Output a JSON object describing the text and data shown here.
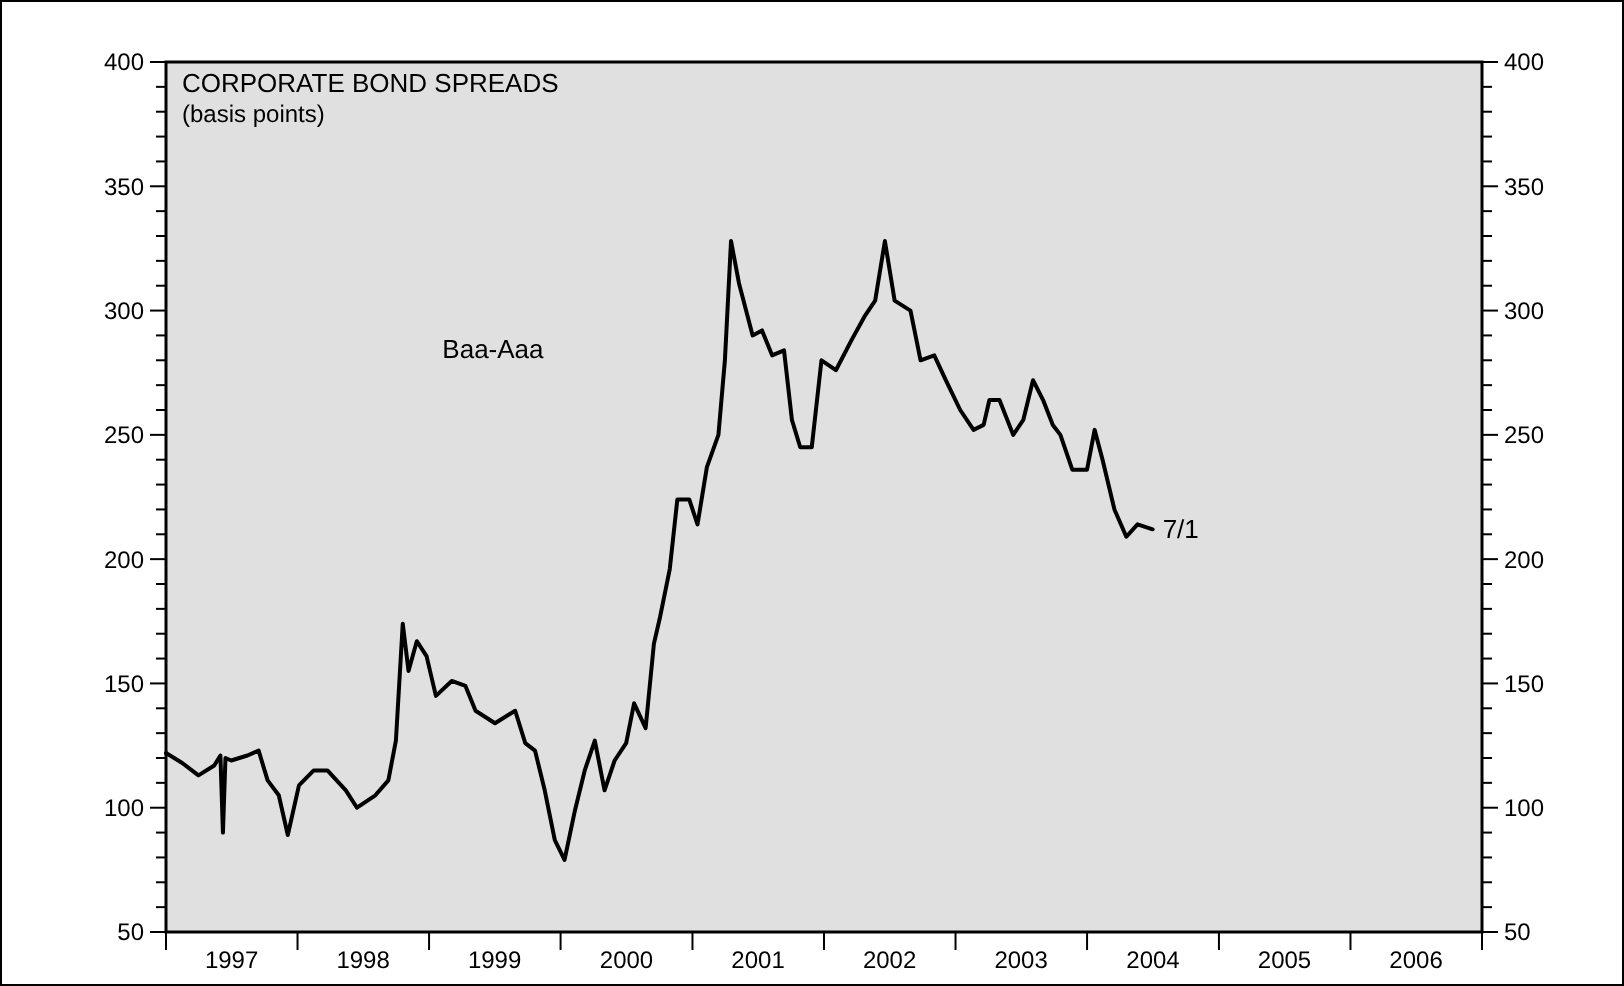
{
  "chart_data": {
    "type": "line",
    "title": "CORPORATE BOND SPREADS",
    "subtitle": "(basis points)",
    "x": [
      "1997-01-01",
      "1997-02-15",
      "1997-04-01",
      "1997-05-15",
      "1997-06-01",
      "1997-06-08",
      "1997-06-15",
      "1997-07-01",
      "1997-08-15",
      "1997-09-15",
      "1997-10-10",
      "1997-11-10",
      "1997-12-05",
      "1998-01-05",
      "1998-02-15",
      "1998-03-25",
      "1998-05-15",
      "1998-06-15",
      "1998-08-05",
      "1998-09-10",
      "1998-10-01",
      "1998-10-20",
      "1998-11-05",
      "1998-11-28",
      "1998-12-25",
      "1999-01-20",
      "1999-03-05",
      "1999-04-12",
      "1999-05-10",
      "1999-07-03",
      "1999-08-28",
      "1999-09-25",
      "1999-10-22",
      "1999-11-18",
      "1999-12-16",
      "2000-01-12",
      "2000-02-10",
      "2000-03-08",
      "2000-04-05",
      "2000-05-02",
      "2000-05-30",
      "2000-07-01",
      "2000-07-23",
      "2000-08-24",
      "2000-09-16",
      "2000-10-02",
      "2000-10-30",
      "2000-11-20",
      "2000-12-23",
      "2001-01-15",
      "2001-02-10",
      "2001-03-14",
      "2001-04-01",
      "2001-04-18",
      "2001-05-10",
      "2001-06-17",
      "2001-07-13",
      "2001-08-10",
      "2001-09-12",
      "2001-10-04",
      "2001-10-27",
      "2001-11-28",
      "2001-12-25",
      "2002-02-03",
      "2002-03-18",
      "2002-04-25",
      "2002-05-23",
      "2002-06-19",
      "2002-07-16",
      "2002-08-29",
      "2002-09-26",
      "2002-11-03",
      "2002-12-05",
      "2003-01-14",
      "2003-02-20",
      "2003-03-20",
      "2003-04-05",
      "2003-05-03",
      "2003-06-10",
      "2003-07-08",
      "2003-08-04",
      "2003-09-01",
      "2003-09-28",
      "2003-10-19",
      "2003-11-21",
      "2004-01-01",
      "2004-01-22",
      "2004-02-13",
      "2004-03-17",
      "2004-04-19",
      "2004-05-20",
      "2004-07-01"
    ],
    "series": [
      {
        "name": "Baa-Aaa",
        "color": "#000000",
        "values": [
          122,
          118,
          113,
          117,
          121,
          90,
          120,
          119,
          121,
          123,
          111,
          105,
          89,
          109,
          115,
          115,
          107,
          100,
          105,
          111,
          127,
          174,
          155,
          167,
          161,
          145,
          151,
          149,
          139,
          134,
          139,
          126,
          123,
          107,
          87,
          79,
          99,
          115,
          127,
          107,
          119,
          126,
          142,
          132,
          166,
          176,
          196,
          224,
          224,
          214,
          237,
          250,
          280,
          328,
          311,
          290,
          292,
          282,
          284,
          256,
          245,
          245,
          280,
          276,
          288,
          298,
          304,
          328,
          304,
          300,
          280,
          282,
          272,
          260,
          252,
          254,
          264,
          264,
          250,
          256,
          272,
          264,
          254,
          250,
          236,
          236,
          252,
          240,
          220,
          209,
          214,
          212
        ]
      }
    ],
    "annotations": [
      {
        "text": "7/1",
        "x": "2004-07-01",
        "y": 212
      }
    ],
    "xlim": [
      "1997-01-01",
      "2007-01-01"
    ],
    "xticks": [
      {
        "value": "1997-01-01",
        "label": null
      },
      {
        "value": "1997-07-02",
        "label": "1997"
      },
      {
        "value": "1998-01-01",
        "label": null
      },
      {
        "value": "1998-07-02",
        "label": "1998"
      },
      {
        "value": "1999-01-01",
        "label": null
      },
      {
        "value": "1999-07-02",
        "label": "1999"
      },
      {
        "value": "2000-01-01",
        "label": null
      },
      {
        "value": "2000-07-02",
        "label": "2000"
      },
      {
        "value": "2001-01-01",
        "label": null
      },
      {
        "value": "2001-07-02",
        "label": "2001"
      },
      {
        "value": "2002-01-01",
        "label": null
      },
      {
        "value": "2002-07-02",
        "label": "2002"
      },
      {
        "value": "2003-01-01",
        "label": null
      },
      {
        "value": "2003-07-02",
        "label": "2003"
      },
      {
        "value": "2004-01-01",
        "label": null
      },
      {
        "value": "2004-07-02",
        "label": "2004"
      },
      {
        "value": "2005-01-01",
        "label": null
      },
      {
        "value": "2005-07-02",
        "label": "2005"
      },
      {
        "value": "2006-01-01",
        "label": null
      },
      {
        "value": "2006-07-02",
        "label": "2006"
      },
      {
        "value": "2007-01-01",
        "label": null
      }
    ],
    "ylim": [
      50,
      400
    ],
    "yticks": [
      50,
      {
        "value": 60,
        "label": null
      },
      {
        "value": 70,
        "label": null
      },
      {
        "value": 80,
        "label": null
      },
      {
        "value": 90,
        "label": null
      },
      100,
      {
        "value": 110,
        "label": null
      },
      {
        "value": 120,
        "label": null
      },
      {
        "value": 130,
        "label": null
      },
      {
        "value": 140,
        "label": null
      },
      150,
      {
        "value": 160,
        "label": null
      },
      {
        "value": 170,
        "label": null
      },
      {
        "value": 180,
        "label": null
      },
      {
        "value": 190,
        "label": null
      },
      200,
      {
        "value": 210,
        "label": null
      },
      {
        "value": 220,
        "label": null
      },
      {
        "value": 230,
        "label": null
      },
      {
        "value": 240,
        "label": null
      },
      250,
      {
        "value": 260,
        "label": null
      },
      {
        "value": 270,
        "label": null
      },
      {
        "value": 280,
        "label": null
      },
      {
        "value": 290,
        "label": null
      },
      300,
      {
        "value": 310,
        "label": null
      },
      {
        "value": 320,
        "label": null
      },
      {
        "value": 330,
        "label": null
      },
      {
        "value": 340,
        "label": null
      },
      350,
      {
        "value": 360,
        "label": null
      },
      {
        "value": 370,
        "label": null
      },
      {
        "value": 380,
        "label": null
      },
      {
        "value": 390,
        "label": null
      },
      400
    ],
    "y2lim": [
      50,
      400
    ],
    "y2ticks": [
      50,
      {
        "value": 60,
        "label": null
      },
      {
        "value": 70,
        "label": null
      },
      {
        "value": 80,
        "label": null
      },
      {
        "value": 90,
        "label": null
      },
      100,
      {
        "value": 110,
        "label": null
      },
      {
        "value": 120,
        "label": null
      },
      {
        "value": 130,
        "label": null
      },
      {
        "value": 140,
        "label": null
      },
      150,
      {
        "value": 160,
        "label": null
      },
      {
        "value": 170,
        "label": null
      },
      {
        "value": 180,
        "label": null
      },
      {
        "value": 190,
        "label": null
      },
      200,
      {
        "value": 210,
        "label": null
      },
      {
        "value": 220,
        "label": null
      },
      {
        "value": 230,
        "label": null
      },
      {
        "value": 240,
        "label": null
      },
      250,
      {
        "value": 260,
        "label": null
      },
      {
        "value": 270,
        "label": null
      },
      {
        "value": 280,
        "label": null
      },
      {
        "value": 290,
        "label": null
      },
      300,
      {
        "value": 310,
        "label": null
      },
      {
        "value": 320,
        "label": null
      },
      {
        "value": 330,
        "label": null
      },
      {
        "value": 340,
        "label": null
      },
      350,
      {
        "value": 360,
        "label": null
      },
      {
        "value": 370,
        "label": null
      },
      {
        "value": 380,
        "label": null
      },
      {
        "value": 390,
        "label": null
      },
      400
    ],
    "grid": false,
    "line_style": "solid",
    "marker": "none"
  }
}
